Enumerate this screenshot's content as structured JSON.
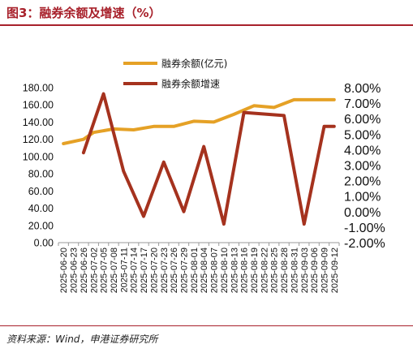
{
  "title": "图3：融券余额及增速（%）",
  "source": "资料来源：Wind，申港证券研究所",
  "colors": {
    "balance": "#e5a126",
    "growth": "#a5321e"
  },
  "chart_data": {
    "type": "line",
    "x": [
      "2025-06-20",
      "2025-06-23",
      "2025-06-26",
      "2025-07-02",
      "2025-07-05",
      "2025-07-08",
      "2025-07-11",
      "2025-07-14",
      "2025-07-17",
      "2025-07-20",
      "2025-07-23",
      "2025-07-26",
      "2025-07-29",
      "2025-08-01",
      "2025-08-04",
      "2025-08-07",
      "2025-08-10",
      "2025-08-13",
      "2025-08-16",
      "2025-08-19",
      "2025-08-22",
      "2025-08-25",
      "2025-08-28",
      "2025-08-31",
      "2025-09-03",
      "2025-09-06",
      "2025-09-09",
      "2025-09-12"
    ],
    "series": [
      {
        "name": "融券余额(亿元)",
        "axis": "left",
        "x": [
          "2025-06-20",
          "2025-06-26",
          "2025-07-02",
          "2025-07-08",
          "2025-07-14",
          "2025-07-20",
          "2025-07-26",
          "2025-08-01",
          "2025-08-07",
          "2025-08-13",
          "2025-08-19",
          "2025-08-25",
          "2025-08-31",
          "2025-09-06",
          "2025-09-12"
        ],
        "values": [
          115,
          120,
          128,
          132,
          131,
          135,
          135,
          141,
          140,
          149,
          159,
          157,
          166,
          166,
          166
        ]
      },
      {
        "name": "融券余额增速",
        "axis": "right",
        "x": [
          "2025-06-26",
          "2025-07-05",
          "2025-07-11",
          "2025-07-17",
          "2025-07-23",
          "2025-07-29",
          "2025-08-04",
          "2025-08-10",
          "2025-08-16",
          "2025-08-22",
          "2025-08-28",
          "2025-09-03",
          "2025-09-09",
          "2025-09-12"
        ],
        "values": [
          0.038,
          0.076,
          0.026,
          -0.003,
          0.032,
          0.0,
          0.042,
          -0.008,
          0.064,
          0.063,
          0.062,
          -0.008,
          0.055,
          0.055
        ]
      }
    ],
    "y_left": {
      "ticks": [
        "0.00",
        "20.00",
        "40.00",
        "60.00",
        "80.00",
        "100.00",
        "120.00",
        "140.00",
        "160.00",
        "180.00"
      ],
      "min": 0,
      "max": 180
    },
    "y_right": {
      "ticks": [
        "-2.00%",
        "-1.00%",
        "0.00%",
        "1.00%",
        "2.00%",
        "3.00%",
        "4.00%",
        "5.00%",
        "6.00%",
        "7.00%",
        "8.00%"
      ],
      "min": -0.02,
      "max": 0.08
    },
    "legend": {
      "position": "top-center"
    },
    "grid": false
  }
}
